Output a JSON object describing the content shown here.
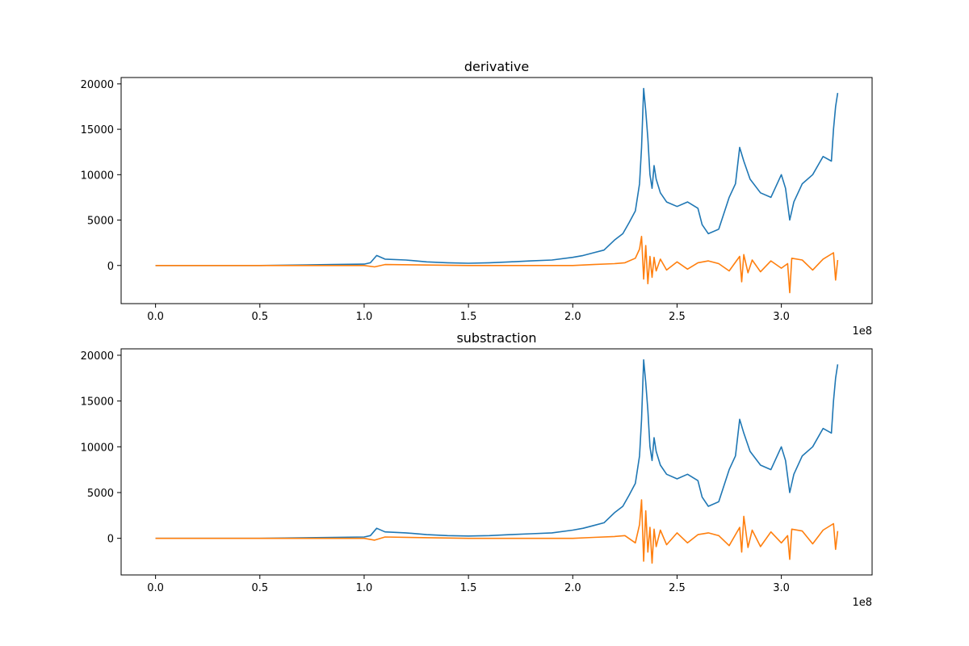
{
  "figure": {
    "background": "#ffffff"
  },
  "chart_data": [
    {
      "type": "line",
      "title": "derivative",
      "xlabel": "",
      "ylabel": "",
      "x_scale_exponent": "1e8",
      "xlim": [
        -0.165,
        3.435
      ],
      "ylim": [
        -4200,
        20700
      ],
      "x_ticks": [
        0.0,
        0.5,
        1.0,
        1.5,
        2.0,
        2.5,
        3.0
      ],
      "x_tick_labels": [
        "0.0",
        "0.5",
        "1.0",
        "1.5",
        "2.0",
        "2.5",
        "3.0"
      ],
      "y_ticks": [
        0,
        5000,
        10000,
        15000,
        20000
      ],
      "y_tick_labels": [
        "0",
        "5000",
        "10000",
        "15000",
        "20000"
      ],
      "grid": false,
      "legend": null,
      "series": [
        {
          "color": "#1f77b4",
          "x": [
            0.0,
            0.5,
            0.85,
            1.0,
            1.03,
            1.06,
            1.1,
            1.2,
            1.3,
            1.4,
            1.5,
            1.6,
            1.7,
            1.8,
            1.9,
            2.0,
            2.05,
            2.1,
            2.15,
            2.2,
            2.24,
            2.27,
            2.3,
            2.32,
            2.33,
            2.34,
            2.35,
            2.36,
            2.37,
            2.38,
            2.39,
            2.4,
            2.42,
            2.45,
            2.5,
            2.55,
            2.6,
            2.62,
            2.65,
            2.7,
            2.75,
            2.78,
            2.8,
            2.82,
            2.85,
            2.9,
            2.95,
            3.0,
            3.02,
            3.04,
            3.06,
            3.1,
            3.15,
            3.2,
            3.24,
            3.25,
            3.26,
            3.27
          ],
          "y": [
            0,
            0,
            100,
            150,
            300,
            1100,
            700,
            600,
            400,
            300,
            250,
            300,
            400,
            500,
            600,
            900,
            1100,
            1400,
            1700,
            2800,
            3500,
            4700,
            6000,
            9000,
            13000,
            19500,
            17000,
            14000,
            10000,
            8500,
            11000,
            9500,
            8000,
            7000,
            6500,
            7000,
            6300,
            4500,
            3500,
            4000,
            7500,
            9000,
            13000,
            11500,
            9500,
            8000,
            7500,
            10000,
            8500,
            5000,
            7000,
            9000,
            10000,
            12000,
            11500,
            15000,
            17500,
            19000
          ]
        },
        {
          "color": "#ff7f0e",
          "x": [
            0.0,
            1.0,
            1.05,
            1.1,
            1.5,
            2.0,
            2.1,
            2.2,
            2.25,
            2.3,
            2.32,
            2.33,
            2.34,
            2.35,
            2.36,
            2.37,
            2.38,
            2.39,
            2.4,
            2.42,
            2.45,
            2.5,
            2.55,
            2.6,
            2.65,
            2.7,
            2.75,
            2.8,
            2.81,
            2.82,
            2.84,
            2.86,
            2.9,
            2.95,
            3.0,
            3.03,
            3.04,
            3.05,
            3.1,
            3.15,
            3.2,
            3.25,
            3.26,
            3.27
          ],
          "y": [
            0,
            0,
            -150,
            100,
            0,
            0,
            100,
            200,
            300,
            800,
            1800,
            3200,
            -1500,
            2200,
            -2000,
            1000,
            -1300,
            900,
            -600,
            700,
            -500,
            400,
            -400,
            300,
            500,
            200,
            -600,
            1000,
            -1800,
            1200,
            -800,
            600,
            -700,
            500,
            -300,
            200,
            -3000,
            800,
            600,
            -500,
            700,
            1400,
            -1600,
            600
          ]
        }
      ]
    },
    {
      "type": "line",
      "title": "substraction",
      "xlabel": "",
      "ylabel": "",
      "x_scale_exponent": "1e8",
      "xlim": [
        -0.165,
        3.435
      ],
      "ylim": [
        -4000,
        20700
      ],
      "x_ticks": [
        0.0,
        0.5,
        1.0,
        1.5,
        2.0,
        2.5,
        3.0
      ],
      "x_tick_labels": [
        "0.0",
        "0.5",
        "1.0",
        "1.5",
        "2.0",
        "2.5",
        "3.0"
      ],
      "y_ticks": [
        0,
        5000,
        10000,
        15000,
        20000
      ],
      "y_tick_labels": [
        "0",
        "5000",
        "10000",
        "15000",
        "20000"
      ],
      "grid": false,
      "legend": null,
      "series": [
        {
          "color": "#1f77b4",
          "x": [
            0.0,
            0.5,
            0.85,
            1.0,
            1.03,
            1.06,
            1.1,
            1.2,
            1.3,
            1.4,
            1.5,
            1.6,
            1.7,
            1.8,
            1.9,
            2.0,
            2.05,
            2.1,
            2.15,
            2.2,
            2.24,
            2.27,
            2.3,
            2.32,
            2.33,
            2.34,
            2.35,
            2.36,
            2.37,
            2.38,
            2.39,
            2.4,
            2.42,
            2.45,
            2.5,
            2.55,
            2.6,
            2.62,
            2.65,
            2.7,
            2.75,
            2.78,
            2.8,
            2.82,
            2.85,
            2.9,
            2.95,
            3.0,
            3.02,
            3.04,
            3.06,
            3.1,
            3.15,
            3.2,
            3.24,
            3.25,
            3.26,
            3.27
          ],
          "y": [
            0,
            0,
            100,
            150,
            300,
            1100,
            700,
            600,
            400,
            300,
            250,
            300,
            400,
            500,
            600,
            900,
            1100,
            1400,
            1700,
            2800,
            3500,
            4700,
            6000,
            9000,
            13000,
            19500,
            17000,
            14000,
            10000,
            8500,
            11000,
            9500,
            8000,
            7000,
            6500,
            7000,
            6300,
            4500,
            3500,
            4000,
            7500,
            9000,
            13000,
            11500,
            9500,
            8000,
            7500,
            10000,
            8500,
            5000,
            7000,
            9000,
            10000,
            12000,
            11500,
            15000,
            17500,
            19000
          ]
        },
        {
          "color": "#ff7f0e",
          "x": [
            0.0,
            1.0,
            1.05,
            1.1,
            1.5,
            2.0,
            2.1,
            2.2,
            2.25,
            2.3,
            2.32,
            2.33,
            2.34,
            2.35,
            2.36,
            2.37,
            2.38,
            2.39,
            2.4,
            2.42,
            2.45,
            2.5,
            2.55,
            2.6,
            2.65,
            2.7,
            2.75,
            2.8,
            2.81,
            2.82,
            2.84,
            2.86,
            2.9,
            2.95,
            3.0,
            3.03,
            3.04,
            3.05,
            3.1,
            3.15,
            3.2,
            3.25,
            3.26,
            3.27
          ],
          "y": [
            0,
            0,
            -200,
            150,
            0,
            0,
            100,
            200,
            300,
            -500,
            1500,
            4200,
            -2500,
            3000,
            -1500,
            1200,
            -2700,
            1000,
            -900,
            900,
            -700,
            600,
            -500,
            400,
            600,
            300,
            -800,
            1200,
            -1500,
            2400,
            -1000,
            900,
            -900,
            700,
            -500,
            300,
            -2300,
            1000,
            800,
            -600,
            900,
            1600,
            -1200,
            800
          ]
        }
      ]
    }
  ]
}
